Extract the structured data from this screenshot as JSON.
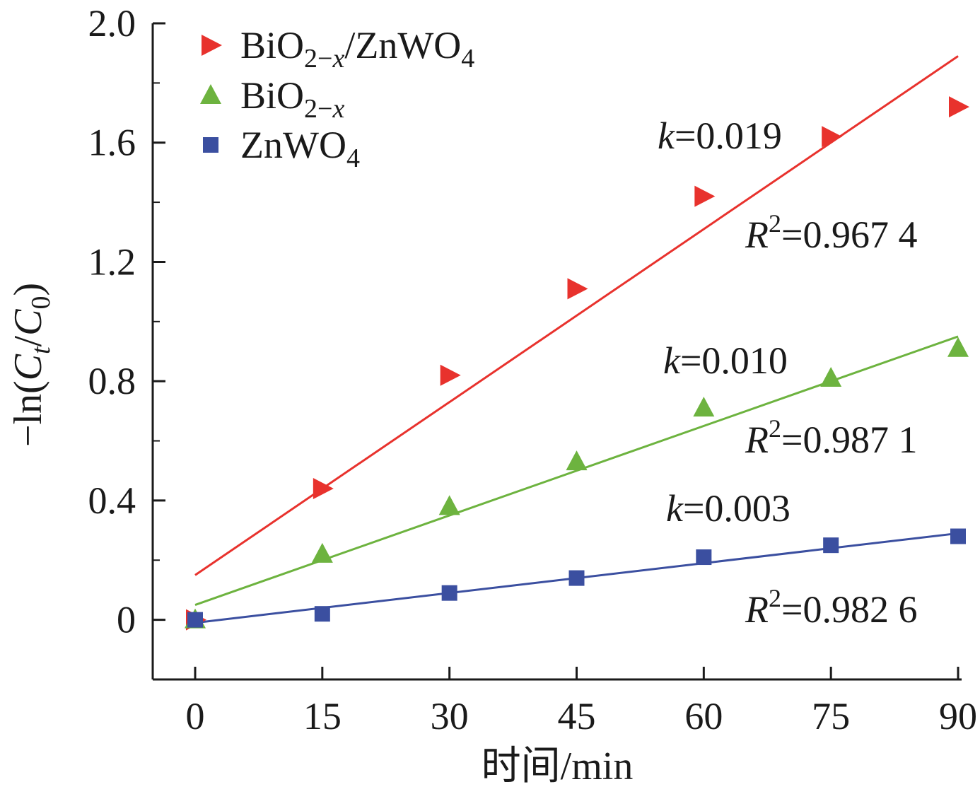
{
  "chart_data": {
    "type": "scatter",
    "xlabel": "时间/min",
    "ylabel": {
      "prefix": "−ln(",
      "c1": "C",
      "s1": "t",
      "mid": "/",
      "c2": "C",
      "s2": "0",
      "suffix": ")"
    },
    "xlim": [
      -3,
      90
    ],
    "ylim": [
      -0.2,
      2.0
    ],
    "x_ticks": [
      0,
      15,
      30,
      45,
      60,
      75,
      90
    ],
    "x_tick_labels": [
      "0",
      "15",
      "30",
      "45",
      "60",
      "75",
      "90"
    ],
    "y_ticks": [
      0,
      0.4,
      0.8,
      1.2,
      1.6,
      2.0
    ],
    "y_tick_labels": [
      "0",
      "0.4",
      "0.8",
      "1.2",
      "1.6",
      "2.0"
    ],
    "grid": false,
    "legend_position": "top-left",
    "series": [
      {
        "name": "BiO2−x/ZnWO4",
        "legend": {
          "base": "BiO",
          "sub": "2−x",
          "rest": "/ZnWO",
          "sub2": "4"
        },
        "marker": "triangle-right",
        "color": "#e8322d",
        "x": [
          0,
          15,
          30,
          45,
          60,
          75,
          90
        ],
        "y": [
          0,
          0.44,
          0.82,
          1.11,
          1.42,
          1.62,
          1.72
        ],
        "fit": {
          "x": [
            0,
            90
          ],
          "y": [
            0.15,
            1.89
          ]
        },
        "k_label": {
          "var": "k",
          "val": "=0.019"
        },
        "r2_label": {
          "var": "R",
          "sup": "2",
          "val": "=0.967 4"
        }
      },
      {
        "name": "BiO2−x",
        "legend": {
          "base": "BiO",
          "sub": "2−x",
          "rest": "",
          "sub2": ""
        },
        "marker": "triangle-up",
        "color": "#6db33f",
        "x": [
          0,
          15,
          30,
          45,
          60,
          75,
          90
        ],
        "y": [
          0,
          0.22,
          0.38,
          0.53,
          0.71,
          0.81,
          0.91
        ],
        "fit": {
          "x": [
            0,
            90
          ],
          "y": [
            0.05,
            0.95
          ]
        },
        "k_label": {
          "var": "k",
          "val": "=0.010"
        },
        "r2_label": {
          "var": "R",
          "sup": "2",
          "val": "=0.987 1"
        }
      },
      {
        "name": "ZnWO4",
        "legend": {
          "base": "ZnWO",
          "sub": "4",
          "rest": "",
          "sub2": ""
        },
        "marker": "square",
        "color": "#3b4fa0",
        "x": [
          0,
          15,
          30,
          45,
          60,
          75,
          90
        ],
        "y": [
          0,
          0.02,
          0.09,
          0.14,
          0.21,
          0.25,
          0.28
        ],
        "fit": {
          "x": [
            0,
            90
          ],
          "y": [
            -0.01,
            0.29
          ]
        },
        "k_label": {
          "var": "k",
          "val": "=0.003"
        },
        "r2_label": {
          "var": "R",
          "sup": "2",
          "val": "=0.982 6"
        }
      }
    ]
  }
}
